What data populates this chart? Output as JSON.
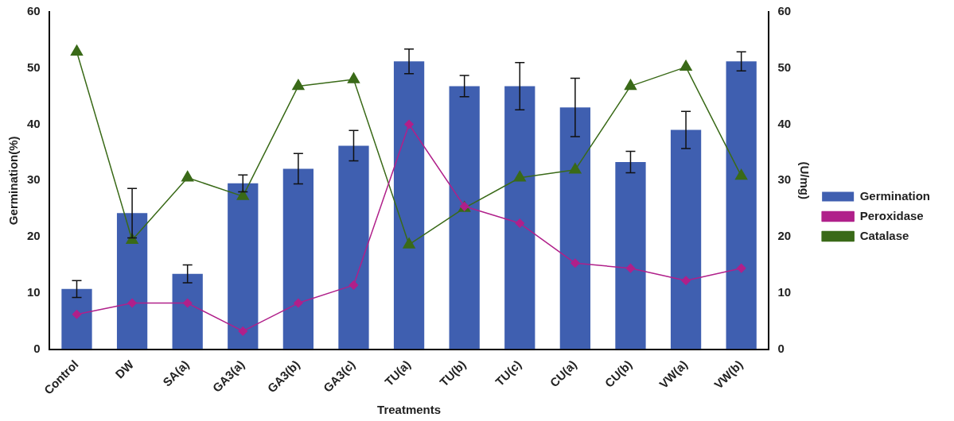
{
  "chart_data": {
    "type": "bar",
    "xlabel": "Treatments",
    "ylabel": "Germination(%)",
    "y2label": "(U/mg)",
    "categories": [
      "Control",
      "DW",
      "SA(a)",
      "GA3(a)",
      "GA3(b)",
      "GA3(c)",
      "TU(a)",
      "TU(b)",
      "TU(c)",
      "CU(a)",
      "CU(b)",
      "VW(a)",
      "VW(b)"
    ],
    "series": [
      {
        "name": "Germination",
        "color": "#3f5fb0",
        "values": [
          10.7,
          24.2,
          13.4,
          29.5,
          32.1,
          36.2,
          51.2,
          46.8,
          46.8,
          43,
          33.3,
          39,
          51.2
        ],
        "errors": [
          1.5,
          4.4,
          1.6,
          1.5,
          2.7,
          2.7,
          2.2,
          1.9,
          4.2,
          5.2,
          1.9,
          3.3,
          1.7
        ]
      },
      {
        "name": "Peroxidase",
        "type": "line",
        "axis": "y2",
        "marker": "diamond",
        "color": "#b0208a",
        "values": [
          6.2,
          8.2,
          8.2,
          3.2,
          8.2,
          11.4,
          40,
          25.4,
          22.4,
          15.3,
          14.4,
          12.2,
          14.4
        ]
      },
      {
        "name": "Catalase",
        "type": "line",
        "axis": "y2",
        "marker": "triangle",
        "color": "#3a6a18",
        "values": [
          52.9,
          19.4,
          30.5,
          27.2,
          46.8,
          48,
          18.6,
          25.1,
          30.5,
          31.9,
          46.8,
          50.2,
          30.8
        ]
      }
    ],
    "ylim": [
      0,
      60
    ],
    "yticks": [
      0,
      10,
      20,
      30,
      40,
      50,
      60
    ],
    "y2lim": [
      0,
      60
    ],
    "y2ticks": [
      0,
      10,
      20,
      30,
      40,
      50,
      60
    ],
    "grid": false,
    "legend": "right",
    "line_style": "solid"
  }
}
